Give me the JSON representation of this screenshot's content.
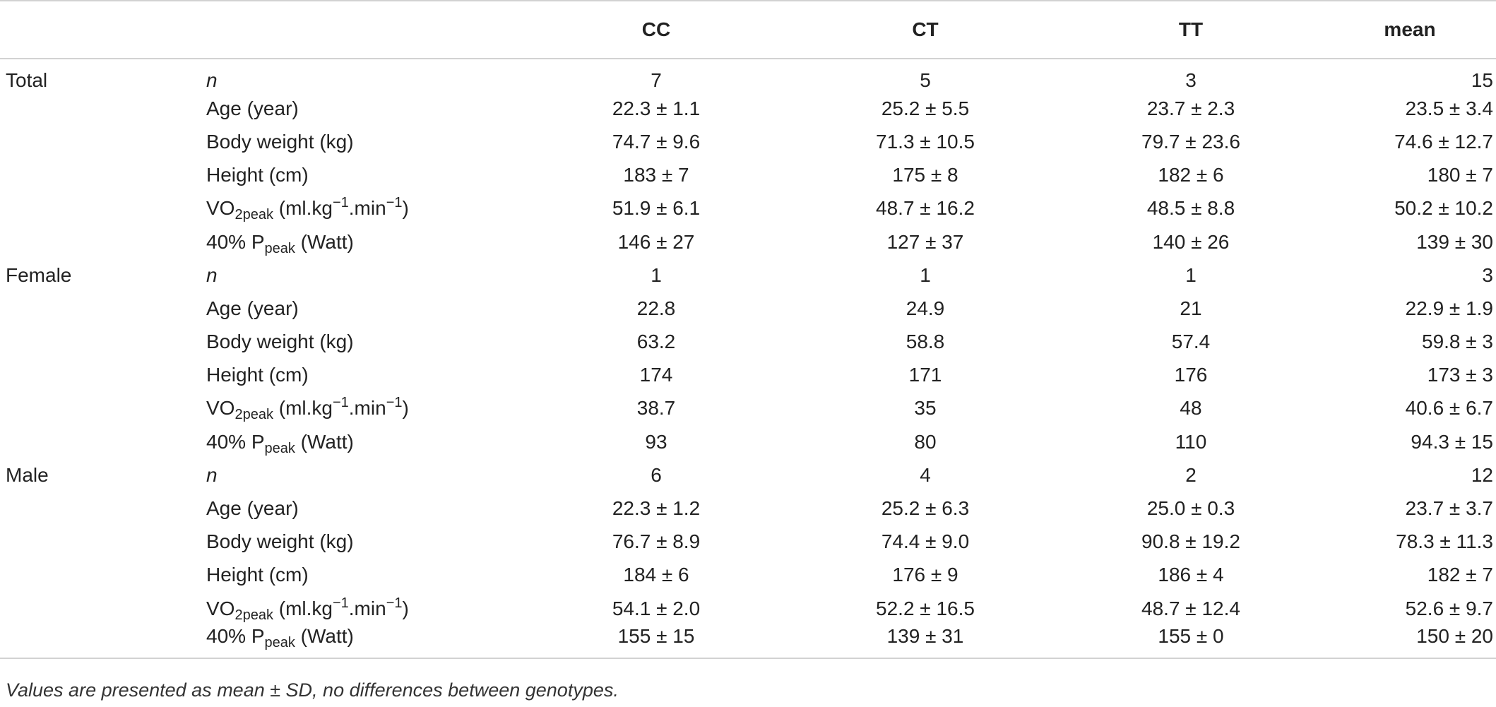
{
  "table": {
    "headers": [
      "",
      "",
      "CC",
      "CT",
      "TT",
      "mean"
    ],
    "groups": [
      {
        "name": "Total",
        "rows": [
          {
            "var": "n",
            "values": [
              "7",
              "5",
              "3",
              "15"
            ]
          },
          {
            "var": "Age (year)",
            "values": [
              "22.3 ± 1.1",
              "25.2 ± 5.5",
              "23.7 ± 2.3",
              "23.5 ± 3.4"
            ]
          },
          {
            "var": "Body weight (kg)",
            "values": [
              "74.7 ± 9.6",
              "71.3 ± 10.5",
              "79.7 ± 23.6",
              "74.6 ± 12.7"
            ]
          },
          {
            "var": "Height (cm)",
            "values": [
              "183 ± 7",
              "175 ± 8",
              "182 ± 6",
              "180 ± 7"
            ]
          },
          {
            "var": "VO2peak (ml.kg−1.min−1)",
            "values": [
              "51.9 ± 6.1",
              "48.7 ± 16.2",
              "48.5 ± 8.8",
              "50.2 ± 10.2"
            ]
          },
          {
            "var": "40% Ppeak (Watt)",
            "values": [
              "146 ± 27",
              "127 ± 37",
              "140 ± 26",
              "139 ± 30"
            ]
          }
        ]
      },
      {
        "name": "Female",
        "rows": [
          {
            "var": "n",
            "values": [
              "1",
              "1",
              "1",
              "3"
            ]
          },
          {
            "var": "Age (year)",
            "values": [
              "22.8",
              "24.9",
              "21",
              "22.9 ± 1.9"
            ]
          },
          {
            "var": "Body weight (kg)",
            "values": [
              "63.2",
              "58.8",
              "57.4",
              "59.8 ± 3"
            ]
          },
          {
            "var": "Height (cm)",
            "values": [
              "174",
              "171",
              "176",
              "173 ± 3"
            ]
          },
          {
            "var": "VO2peak (ml.kg−1.min−1)",
            "values": [
              "38.7",
              "35",
              "48",
              "40.6 ± 6.7"
            ]
          },
          {
            "var": "40% Ppeak (Watt)",
            "values": [
              "93",
              "80",
              "110",
              "94.3 ± 15"
            ]
          }
        ]
      },
      {
        "name": "Male",
        "rows": [
          {
            "var": "n",
            "values": [
              "6",
              "4",
              "2",
              "12"
            ]
          },
          {
            "var": "Age (year)",
            "values": [
              "22.3 ± 1.2",
              "25.2 ± 6.3",
              "25.0 ± 0.3",
              "23.7 ± 3.7"
            ]
          },
          {
            "var": "Body weight (kg)",
            "values": [
              "76.7 ± 8.9",
              "74.4 ± 9.0",
              "90.8 ± 19.2",
              "78.3 ± 11.3"
            ]
          },
          {
            "var": "Height (cm)",
            "values": [
              "184 ± 6",
              "176 ± 9",
              "186 ± 4",
              "182 ± 7"
            ]
          },
          {
            "var": "VO2peak (ml.kg−1.min−1)",
            "values": [
              "54.1 ± 2.0",
              "52.2 ± 16.5",
              "48.7 ± 12.4",
              "52.6 ± 9.7"
            ]
          },
          {
            "var": "40% Ppeak (Watt)",
            "values": [
              "155 ± 15",
              "139 ± 31",
              "155 ± 0",
              "150 ± 20"
            ]
          }
        ]
      }
    ]
  },
  "footnote": "Values are presented as mean ± SD, no differences between genotypes."
}
